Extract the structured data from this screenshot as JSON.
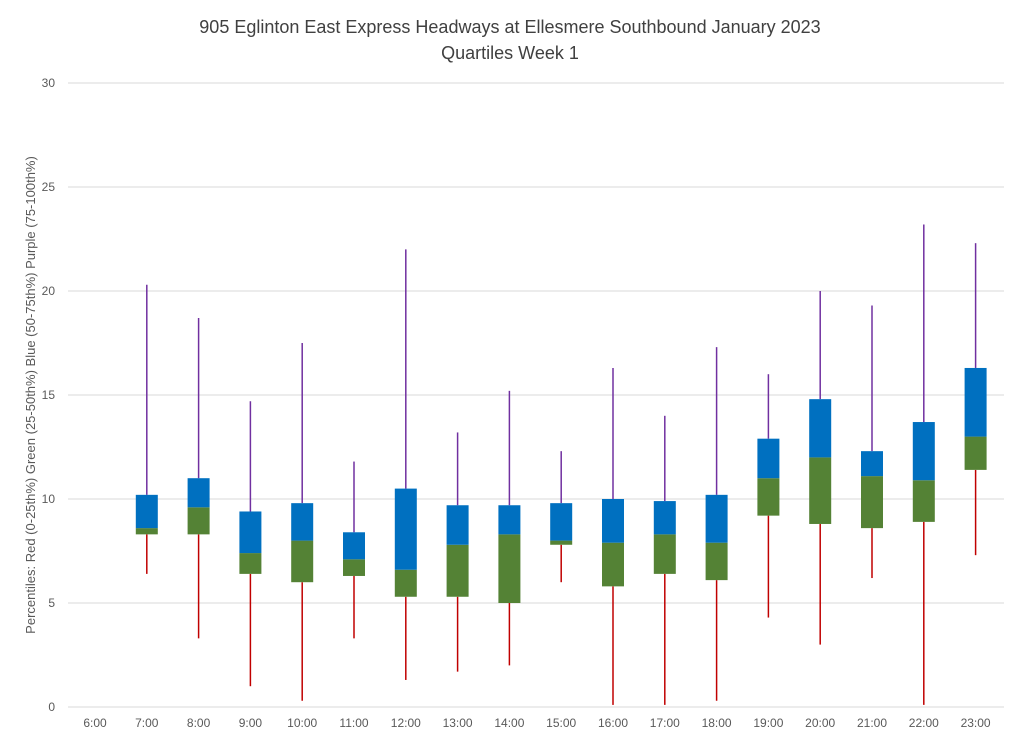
{
  "chart_data": {
    "type": "box",
    "title": "905 Eglinton East Express Headways at Ellesmere Southbound January 2023",
    "subtitle": "Quartiles Week 1",
    "ylabel": "Percentiles:  Red (0-25th%)  Green (25-50th%)  Blue (50-75th%)  Purple (75-100th%)",
    "ylim": [
      0,
      30
    ],
    "yticks": [
      0,
      5,
      10,
      15,
      20,
      25,
      30
    ],
    "grid": true,
    "colors": {
      "min_to_q1": "#c00000",
      "q1_to_median": "#548235",
      "median_to_q3": "#0070c0",
      "q3_to_max": "#7030a0",
      "gridline": "#d9d9d9"
    },
    "categories": [
      "6:00",
      "7:00",
      "8:00",
      "9:00",
      "10:00",
      "11:00",
      "12:00",
      "13:00",
      "14:00",
      "15:00",
      "16:00",
      "17:00",
      "18:00",
      "19:00",
      "20:00",
      "21:00",
      "22:00",
      "23:00"
    ],
    "series": [
      {
        "category": "6:00",
        "min": null,
        "q1": null,
        "median": null,
        "q3": null,
        "max": null
      },
      {
        "category": "7:00",
        "min": 6.4,
        "q1": 8.3,
        "median": 8.6,
        "q3": 10.2,
        "max": 20.3
      },
      {
        "category": "8:00",
        "min": 3.3,
        "q1": 8.3,
        "median": 9.6,
        "q3": 11.0,
        "max": 18.7
      },
      {
        "category": "9:00",
        "min": 1.0,
        "q1": 6.4,
        "median": 7.4,
        "q3": 9.4,
        "max": 14.7
      },
      {
        "category": "10:00",
        "min": 0.3,
        "q1": 6.0,
        "median": 8.0,
        "q3": 9.8,
        "max": 17.5
      },
      {
        "category": "11:00",
        "min": 3.3,
        "q1": 6.3,
        "median": 7.1,
        "q3": 8.4,
        "max": 11.8
      },
      {
        "category": "12:00",
        "min": 1.3,
        "q1": 5.3,
        "median": 6.6,
        "q3": 10.5,
        "max": 22.0
      },
      {
        "category": "13:00",
        "min": 1.7,
        "q1": 5.3,
        "median": 7.8,
        "q3": 9.7,
        "max": 13.2
      },
      {
        "category": "14:00",
        "min": 2.0,
        "q1": 5.0,
        "median": 8.3,
        "q3": 9.7,
        "max": 15.2
      },
      {
        "category": "15:00",
        "min": 6.0,
        "q1": 7.8,
        "median": 8.0,
        "q3": 9.8,
        "max": 12.3
      },
      {
        "category": "16:00",
        "min": 0.1,
        "q1": 5.8,
        "median": 7.9,
        "q3": 10.0,
        "max": 16.3
      },
      {
        "category": "17:00",
        "min": 0.1,
        "q1": 6.4,
        "median": 8.3,
        "q3": 9.9,
        "max": 14.0
      },
      {
        "category": "18:00",
        "min": 0.3,
        "q1": 6.1,
        "median": 7.9,
        "q3": 10.2,
        "max": 17.3
      },
      {
        "category": "19:00",
        "min": 4.3,
        "q1": 9.2,
        "median": 11.0,
        "q3": 12.9,
        "max": 16.0
      },
      {
        "category": "20:00",
        "min": 3.0,
        "q1": 8.8,
        "median": 12.0,
        "q3": 14.8,
        "max": 20.0
      },
      {
        "category": "21:00",
        "min": 6.2,
        "q1": 8.6,
        "median": 11.1,
        "q3": 12.3,
        "max": 19.3
      },
      {
        "category": "22:00",
        "min": 0.1,
        "q1": 8.9,
        "median": 10.9,
        "q3": 13.7,
        "max": 23.2
      },
      {
        "category": "23:00",
        "min": 7.3,
        "q1": 11.4,
        "median": 13.0,
        "q3": 16.3,
        "max": 22.3
      }
    ]
  }
}
